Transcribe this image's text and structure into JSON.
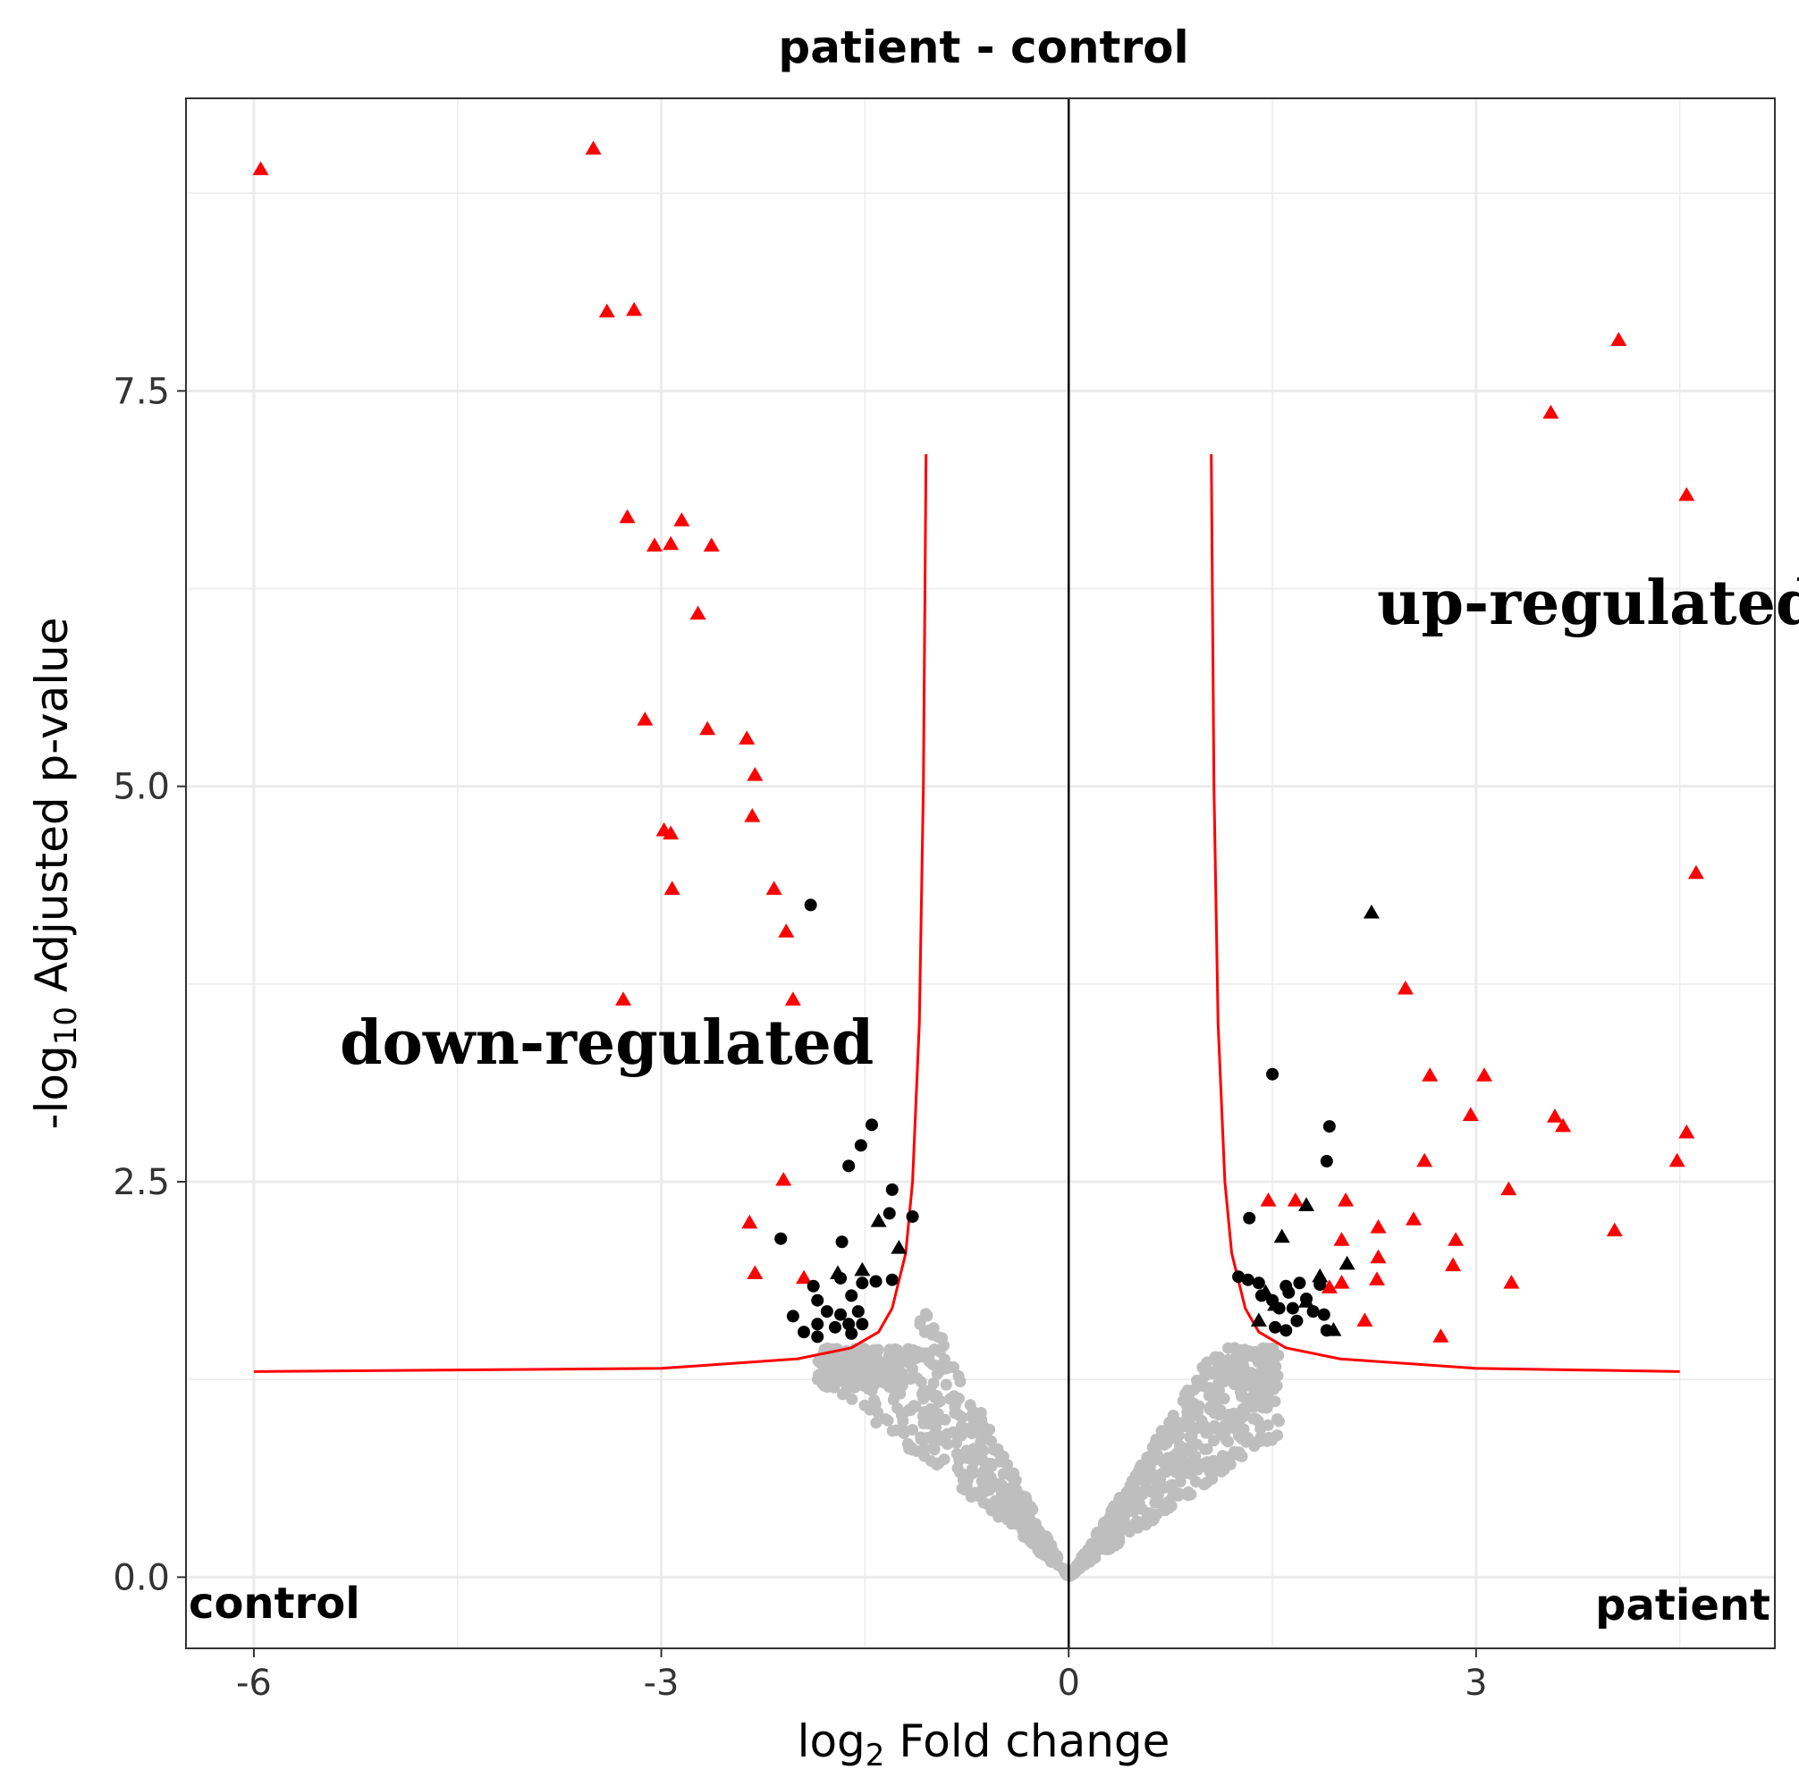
{
  "chart_data": {
    "type": "scatter",
    "title": "patient - control",
    "xlabel": {
      "base": "log",
      "sub": "2",
      "rest": " Fold change"
    },
    "ylabel": {
      "pre": "-log",
      "sub": "10",
      "rest": " Adjusted p-value"
    },
    "xlim": [
      -6.5,
      5.2
    ],
    "ylim": [
      -0.45,
      9.35
    ],
    "x_ticks": [
      -6,
      -3,
      0,
      3
    ],
    "x_tick_labels": [
      "-6",
      "-3",
      "0",
      "3"
    ],
    "y_ticks": [
      0,
      2.5,
      5,
      7.5
    ],
    "y_tick_labels": [
      "0.0",
      "2.5",
      "5.0",
      "7.5"
    ],
    "grid": true,
    "annotations": {
      "control": "control",
      "patient": "patient",
      "down": "down-regulated",
      "up": "up-regulated"
    },
    "colors": {
      "significant": "#ff0000",
      "near_threshold": "#000000",
      "not_significant": "#bebebe",
      "threshold_line": "#ff0000"
    },
    "threshold_curve": {
      "left": [
        [
          -6,
          1.3
        ],
        [
          -3,
          1.32
        ],
        [
          -2,
          1.38
        ],
        [
          -1.6,
          1.45
        ],
        [
          -1.4,
          1.55
        ],
        [
          -1.3,
          1.7
        ],
        [
          -1.2,
          2.05
        ],
        [
          -1.15,
          2.5
        ],
        [
          -1.1,
          3.5
        ],
        [
          -1.07,
          5.0
        ],
        [
          -1.05,
          7.1
        ]
      ],
      "right": [
        [
          1.05,
          7.1
        ],
        [
          1.07,
          5.0
        ],
        [
          1.1,
          3.5
        ],
        [
          1.15,
          2.5
        ],
        [
          1.2,
          2.05
        ],
        [
          1.3,
          1.7
        ],
        [
          1.4,
          1.55
        ],
        [
          1.6,
          1.45
        ],
        [
          2,
          1.38
        ],
        [
          3,
          1.32
        ],
        [
          4.5,
          1.3
        ]
      ]
    },
    "series": [
      {
        "name": "significant",
        "shape": "triangle",
        "color": "#ff0000",
        "points": [
          [
            -5.95,
            8.9
          ],
          [
            -3.5,
            9.03
          ],
          [
            -3.4,
            8.0
          ],
          [
            -3.2,
            8.01
          ],
          [
            -3.25,
            6.7
          ],
          [
            -3.05,
            6.52
          ],
          [
            -2.93,
            6.53
          ],
          [
            -2.85,
            6.68
          ],
          [
            -2.63,
            6.52
          ],
          [
            -2.73,
            6.09
          ],
          [
            -3.12,
            5.42
          ],
          [
            -2.66,
            5.36
          ],
          [
            -2.37,
            5.3
          ],
          [
            -2.31,
            5.07
          ],
          [
            -2.33,
            4.81
          ],
          [
            -2.98,
            4.72
          ],
          [
            -2.93,
            4.7
          ],
          [
            -2.92,
            4.35
          ],
          [
            -2.17,
            4.35
          ],
          [
            -2.08,
            4.08
          ],
          [
            -3.28,
            3.65
          ],
          [
            -2.03,
            3.65
          ],
          [
            -2.1,
            2.51
          ],
          [
            -2.35,
            2.24
          ],
          [
            -2.31,
            1.92
          ],
          [
            -1.95,
            1.89
          ],
          [
            3.55,
            7.36
          ],
          [
            4.05,
            7.82
          ],
          [
            4.55,
            6.84
          ],
          [
            4.62,
            4.45
          ],
          [
            2.48,
            3.72
          ],
          [
            2.66,
            3.17
          ],
          [
            3.06,
            3.17
          ],
          [
            2.96,
            2.92
          ],
          [
            3.58,
            2.91
          ],
          [
            3.64,
            2.85
          ],
          [
            4.55,
            2.81
          ],
          [
            4.48,
            2.63
          ],
          [
            2.62,
            2.63
          ],
          [
            3.24,
            2.45
          ],
          [
            1.47,
            2.38
          ],
          [
            1.67,
            2.38
          ],
          [
            2.04,
            2.38
          ],
          [
            2.28,
            2.21
          ],
          [
            2.54,
            2.26
          ],
          [
            4.02,
            2.19
          ],
          [
            2.01,
            2.13
          ],
          [
            2.85,
            2.13
          ],
          [
            2.28,
            2.02
          ],
          [
            2.83,
            1.97
          ],
          [
            2.27,
            1.88
          ],
          [
            3.26,
            1.86
          ],
          [
            2.01,
            1.86
          ],
          [
            1.92,
            1.83
          ],
          [
            2.18,
            1.62
          ],
          [
            2.74,
            1.52
          ]
        ]
      },
      {
        "name": "near_threshold_circle",
        "shape": "circle",
        "color": "#000000",
        "points": [
          [
            -1.9,
            4.25
          ],
          [
            -1.45,
            2.86
          ],
          [
            -1.53,
            2.73
          ],
          [
            -1.62,
            2.6
          ],
          [
            -1.3,
            2.45
          ],
          [
            -1.32,
            2.3
          ],
          [
            -1.15,
            2.28
          ],
          [
            -2.12,
            2.14
          ],
          [
            -1.67,
            2.12
          ],
          [
            -1.88,
            1.84
          ],
          [
            -1.68,
            1.89
          ],
          [
            -1.52,
            1.86
          ],
          [
            -1.42,
            1.87
          ],
          [
            -1.3,
            1.88
          ],
          [
            -1.85,
            1.75
          ],
          [
            -1.6,
            1.78
          ],
          [
            -2.03,
            1.65
          ],
          [
            -1.78,
            1.68
          ],
          [
            -1.68,
            1.66
          ],
          [
            -1.55,
            1.68
          ],
          [
            -1.85,
            1.6
          ],
          [
            -1.72,
            1.58
          ],
          [
            -1.62,
            1.6
          ],
          [
            -1.52,
            1.6
          ],
          [
            -1.95,
            1.55
          ],
          [
            -1.85,
            1.52
          ],
          [
            -1.6,
            1.54
          ],
          [
            1.5,
            3.18
          ],
          [
            1.92,
            2.85
          ],
          [
            1.9,
            2.63
          ],
          [
            1.33,
            2.27
          ],
          [
            1.25,
            1.9
          ],
          [
            1.32,
            1.88
          ],
          [
            1.4,
            1.86
          ],
          [
            1.6,
            1.84
          ],
          [
            1.7,
            1.86
          ],
          [
            1.85,
            1.85
          ],
          [
            1.42,
            1.78
          ],
          [
            1.5,
            1.75
          ],
          [
            1.62,
            1.8
          ],
          [
            1.75,
            1.76
          ],
          [
            1.55,
            1.7
          ],
          [
            1.65,
            1.7
          ],
          [
            1.8,
            1.68
          ],
          [
            1.68,
            1.62
          ],
          [
            1.88,
            1.66
          ],
          [
            1.52,
            1.58
          ],
          [
            1.6,
            1.56
          ],
          [
            1.9,
            1.56
          ]
        ]
      },
      {
        "name": "near_threshold_triangle",
        "shape": "triangle",
        "color": "#000000",
        "points": [
          [
            2.23,
            4.2
          ],
          [
            -1.4,
            2.25
          ],
          [
            -1.25,
            2.08
          ],
          [
            -1.7,
            1.92
          ],
          [
            -1.52,
            1.94
          ],
          [
            1.75,
            2.35
          ],
          [
            1.57,
            2.15
          ],
          [
            2.05,
            1.98
          ],
          [
            1.85,
            1.9
          ],
          [
            1.45,
            1.8
          ],
          [
            1.52,
            1.72
          ],
          [
            1.75,
            1.74
          ],
          [
            1.4,
            1.62
          ],
          [
            1.95,
            1.56
          ]
        ]
      }
    ]
  }
}
